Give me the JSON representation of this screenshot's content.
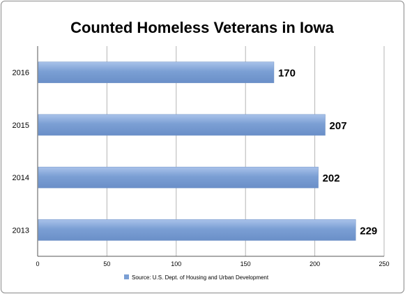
{
  "chart_data": {
    "type": "bar",
    "orientation": "horizontal",
    "title": "Counted Homeless Veterans in Iowa",
    "categories": [
      "2016",
      "2015",
      "2014",
      "2013"
    ],
    "series": [
      {
        "name": "Source: U.S. Dept. of Housing and Urban Development",
        "values": [
          170,
          207,
          202,
          229
        ]
      }
    ],
    "data_labels": [
      "170",
      "207",
      "202",
      "229"
    ],
    "xlim": [
      0,
      250
    ],
    "x_ticks": [
      "0",
      "50",
      "100",
      "150",
      "200",
      "250"
    ],
    "grid": true,
    "legend_position": "bottom",
    "bar_color": "#7b9fd4"
  }
}
